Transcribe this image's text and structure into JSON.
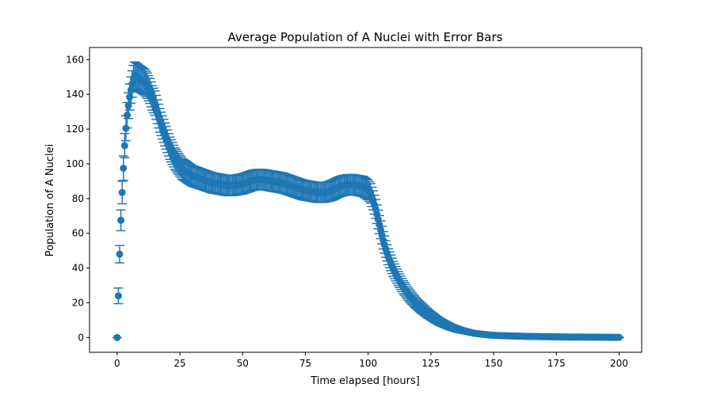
{
  "chart_data": {
    "type": "scatter",
    "title": "Average Population of A Nuclei with Error Bars",
    "xlabel": "Time elapsed [hours]",
    "ylabel": "Population of A Nuclei",
    "xlim": [
      -11,
      209
    ],
    "ylim": [
      -8.5,
      167
    ],
    "xticks": [
      0,
      25,
      50,
      75,
      100,
      125,
      150,
      175,
      200
    ],
    "yticks": [
      0,
      20,
      40,
      60,
      80,
      100,
      120,
      140,
      160
    ],
    "grid": false,
    "legend": "none",
    "color": "#1f77b4",
    "series": [
      {
        "x": [
          0,
          0.5,
          1,
          1.5,
          2,
          2.5,
          3,
          3.5,
          4,
          4.5,
          5,
          5.5,
          6,
          6.5,
          7,
          8,
          9,
          10,
          11,
          12,
          13,
          14,
          15,
          16,
          17,
          18,
          19,
          20,
          21,
          22,
          23,
          24,
          25,
          26,
          28,
          30,
          32,
          34,
          36,
          38,
          40,
          42,
          44,
          46,
          48,
          50,
          52,
          54,
          56,
          58,
          60,
          62,
          64,
          66,
          68,
          70,
          72,
          74,
          76,
          78,
          80,
          82,
          84,
          86,
          88,
          90,
          92,
          94,
          96,
          98,
          100,
          101,
          102,
          103,
          104,
          105,
          106,
          107,
          108,
          109,
          110,
          112,
          114,
          116,
          118,
          120,
          122,
          124,
          126,
          128,
          130,
          133,
          136,
          139,
          142,
          145,
          148,
          151,
          155,
          160,
          165,
          170,
          175,
          180,
          185,
          190,
          195,
          200
        ],
        "y": [
          0,
          24,
          48,
          67.5,
          83.5,
          97.5,
          110.5,
          120.5,
          128,
          133.5,
          138.5,
          142.5,
          146,
          149,
          151,
          150,
          149,
          148,
          147,
          145,
          142,
          138,
          135,
          130,
          125,
          121,
          117,
          113,
          109,
          106,
          103,
          101,
          99,
          97,
          95,
          93,
          92,
          91,
          90,
          89,
          88.5,
          88,
          87.5,
          87.5,
          88,
          88.5,
          89.5,
          90.5,
          91,
          91,
          90.5,
          90,
          89.5,
          89,
          88,
          87,
          86,
          85,
          84.5,
          84,
          83.5,
          83.5,
          84,
          85,
          86.5,
          87.5,
          88,
          88,
          87.5,
          87,
          85,
          83,
          79,
          74,
          68,
          62,
          56,
          51,
          46.5,
          43,
          39.5,
          34,
          29,
          25,
          21.5,
          18.5,
          16,
          13.5,
          11.5,
          9.5,
          8,
          6,
          4.5,
          3.5,
          2.5,
          2,
          1.5,
          1.2,
          1,
          0.8,
          0.6,
          0.5,
          0.4,
          0.3,
          0.25,
          0.2,
          0.15,
          0.1
        ],
        "err": [
          0,
          4.5,
          5,
          6,
          6.5,
          7,
          7,
          7.2,
          7.3,
          7.4,
          7.5,
          7.6,
          7.6,
          7.7,
          7.7,
          7.7,
          7.6,
          7.5,
          7.4,
          7.3,
          7.2,
          7.1,
          7,
          6.9,
          6.8,
          6.7,
          6.6,
          6.5,
          6.4,
          6.3,
          6.2,
          6.1,
          6,
          6,
          6,
          5.9,
          5.9,
          5.8,
          5.8,
          5.8,
          5.8,
          5.8,
          5.8,
          5.8,
          5.8,
          5.8,
          5.8,
          5.8,
          5.8,
          5.8,
          5.8,
          5.8,
          5.8,
          5.8,
          5.7,
          5.7,
          5.7,
          5.7,
          5.7,
          5.7,
          5.7,
          5.7,
          5.7,
          5.8,
          5.8,
          5.8,
          5.8,
          5.8,
          5.8,
          5.8,
          5.7,
          5.6,
          5.5,
          5.4,
          5.3,
          5.1,
          5,
          4.8,
          4.6,
          4.5,
          4.3,
          4,
          3.7,
          3.5,
          3.2,
          3,
          2.8,
          2.5,
          2.3,
          2.1,
          1.9,
          1.7,
          1.5,
          1.3,
          1.1,
          1,
          0.9,
          0.8,
          0.7,
          0.6,
          0.5,
          0.5,
          0.4,
          0.4,
          0.3,
          0.3,
          0.2,
          0.2
        ]
      }
    ]
  }
}
